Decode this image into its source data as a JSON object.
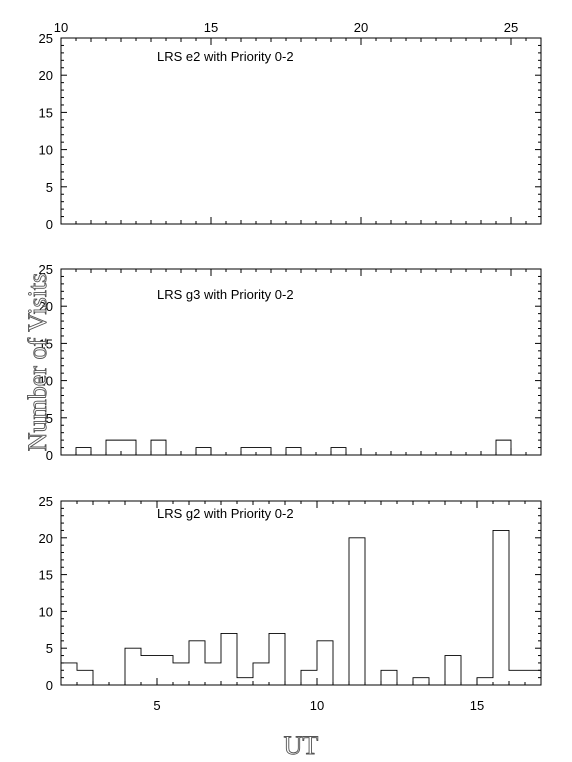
{
  "chart_data": {
    "type": "bar",
    "style": "step histogram, three stacked panels sharing one UT axis",
    "xlabel": "UT",
    "ylabel": "Number of Visits",
    "grid": false,
    "top_axis": {
      "ticks": [
        "10",
        "15",
        "20",
        "25"
      ]
    },
    "bottom_axis": {
      "ticks": [
        "5",
        "10",
        "15"
      ]
    },
    "panels": [
      {
        "title": "LRS e2 with Priority 0-2",
        "x_bin_edges": [],
        "values": [],
        "ylim": [
          0,
          25
        ],
        "yticks": [
          "0",
          "5",
          "10",
          "15",
          "20",
          "25"
        ]
      },
      {
        "title": "LRS g3 with Priority 0-2",
        "x_bin_edges": [
          10,
          10.5,
          11,
          11.5,
          12,
          12.5,
          13,
          13.5,
          14,
          14.5,
          15,
          15.5,
          16,
          16.5,
          17,
          17.5,
          18,
          18.5,
          19,
          19.5,
          20,
          20.5,
          21,
          21.5,
          22,
          22.5,
          23,
          23.5,
          24,
          24.5,
          25,
          25.5
        ],
        "values": [
          0,
          1,
          0,
          2,
          2,
          0,
          2,
          0,
          0,
          1,
          0,
          0,
          1,
          1,
          0,
          1,
          0,
          0,
          1,
          0,
          0,
          0,
          0,
          0,
          0,
          0,
          0,
          0,
          0,
          2,
          0
        ],
        "ylim": [
          0,
          25
        ],
        "yticks": [
          "0",
          "5",
          "10",
          "15",
          "20",
          "25"
        ]
      },
      {
        "title": "LRS g2 with Priority 0-2",
        "x_bin_edges": [
          2,
          2.5,
          3,
          3.5,
          4,
          4.5,
          5,
          5.5,
          6,
          6.5,
          7,
          7.5,
          8,
          8.5,
          9,
          9.5,
          10,
          10.5,
          11,
          11.5,
          12,
          12.5,
          13,
          13.5,
          14,
          14.5,
          15,
          15.5,
          16,
          16.5,
          17
        ],
        "values": [
          3,
          2,
          0,
          0,
          5,
          4,
          4,
          3,
          6,
          3,
          7,
          1,
          3,
          7,
          0,
          2,
          6,
          0,
          20,
          0,
          2,
          0,
          1,
          0,
          4,
          0,
          1,
          21,
          2,
          2
        ],
        "ylim": [
          0,
          25
        ],
        "yticks": [
          "0",
          "5",
          "10",
          "15",
          "20",
          "25"
        ]
      }
    ]
  }
}
